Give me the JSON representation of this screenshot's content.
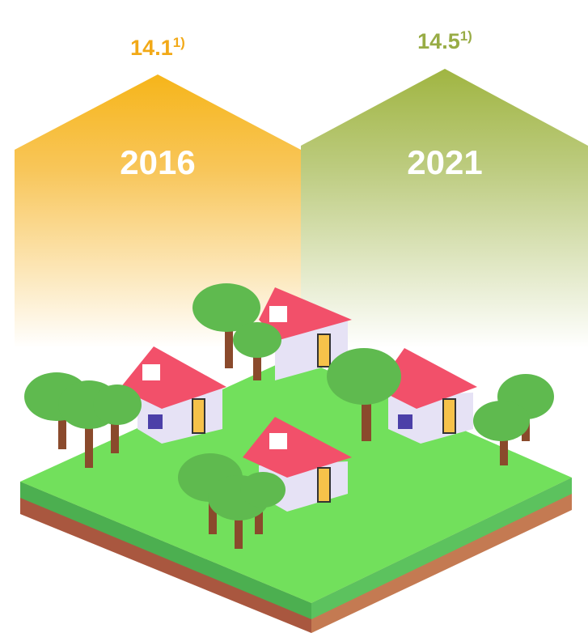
{
  "columns": [
    {
      "value": "14.1",
      "note": "1)",
      "year": "2016"
    },
    {
      "value": "14.5",
      "note": "1)",
      "year": "2021"
    }
  ]
}
